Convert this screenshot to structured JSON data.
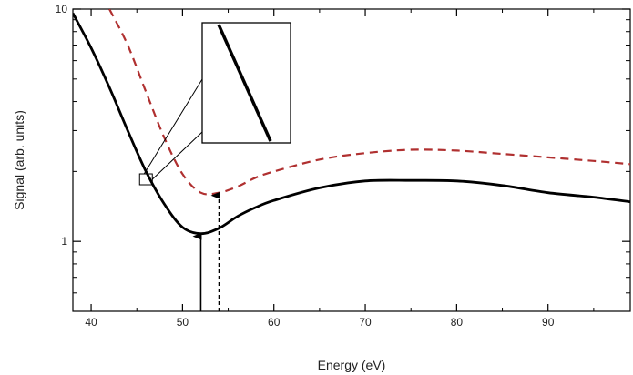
{
  "chart_data": {
    "type": "line",
    "title": "",
    "xlabel": "Energy (eV)",
    "ylabel": "Signal (arb. units)",
    "xlim": [
      38,
      99
    ],
    "ylim": [
      0.5,
      10
    ],
    "yscale": "log",
    "grid": false,
    "x_ticks": [
      40,
      50,
      60,
      70,
      80,
      90
    ],
    "x_tick_labels": [
      "40",
      "50",
      "60",
      "70",
      "80",
      "90"
    ],
    "y_ticks": [
      1,
      10
    ],
    "y_tick_labels": [
      "1",
      "10"
    ],
    "series": [
      {
        "color": "#000000",
        "style": "solid",
        "x": [
          38,
          40,
          42,
          44,
          46,
          48,
          50,
          52,
          54,
          56,
          58,
          60,
          65,
          70,
          75,
          80,
          85,
          90,
          95,
          99
        ],
        "y": [
          9.6,
          6.8,
          4.6,
          3.0,
          2.0,
          1.45,
          1.15,
          1.08,
          1.14,
          1.28,
          1.4,
          1.5,
          1.7,
          1.82,
          1.83,
          1.82,
          1.74,
          1.62,
          1.55,
          1.48
        ]
      },
      {
        "color": "#b03030",
        "style": "dashed",
        "x": [
          42,
          44,
          46,
          48,
          50,
          52,
          54,
          56,
          58,
          60,
          65,
          70,
          75,
          80,
          85,
          90,
          95,
          99
        ],
        "y": [
          10.0,
          7.0,
          4.4,
          2.8,
          1.95,
          1.62,
          1.62,
          1.72,
          1.88,
          2.0,
          2.25,
          2.4,
          2.48,
          2.46,
          2.38,
          2.3,
          2.22,
          2.15
        ]
      }
    ],
    "annotations": [
      {
        "type": "arrow",
        "style": "solid",
        "x": 52,
        "y_from": 0.5,
        "y_to": 1.08,
        "color": "#000000"
      },
      {
        "type": "arrow",
        "style": "dashed",
        "x": 54,
        "y_from": 0.5,
        "y_to": 1.62,
        "color": "#000000"
      }
    ],
    "inset": {
      "zoom_center": {
        "x": 46,
        "y": 1.85
      },
      "segment_start": {
        "x": 45,
        "y": 2.6
      },
      "segment_end": {
        "x": 47,
        "y": 1.7
      }
    }
  }
}
